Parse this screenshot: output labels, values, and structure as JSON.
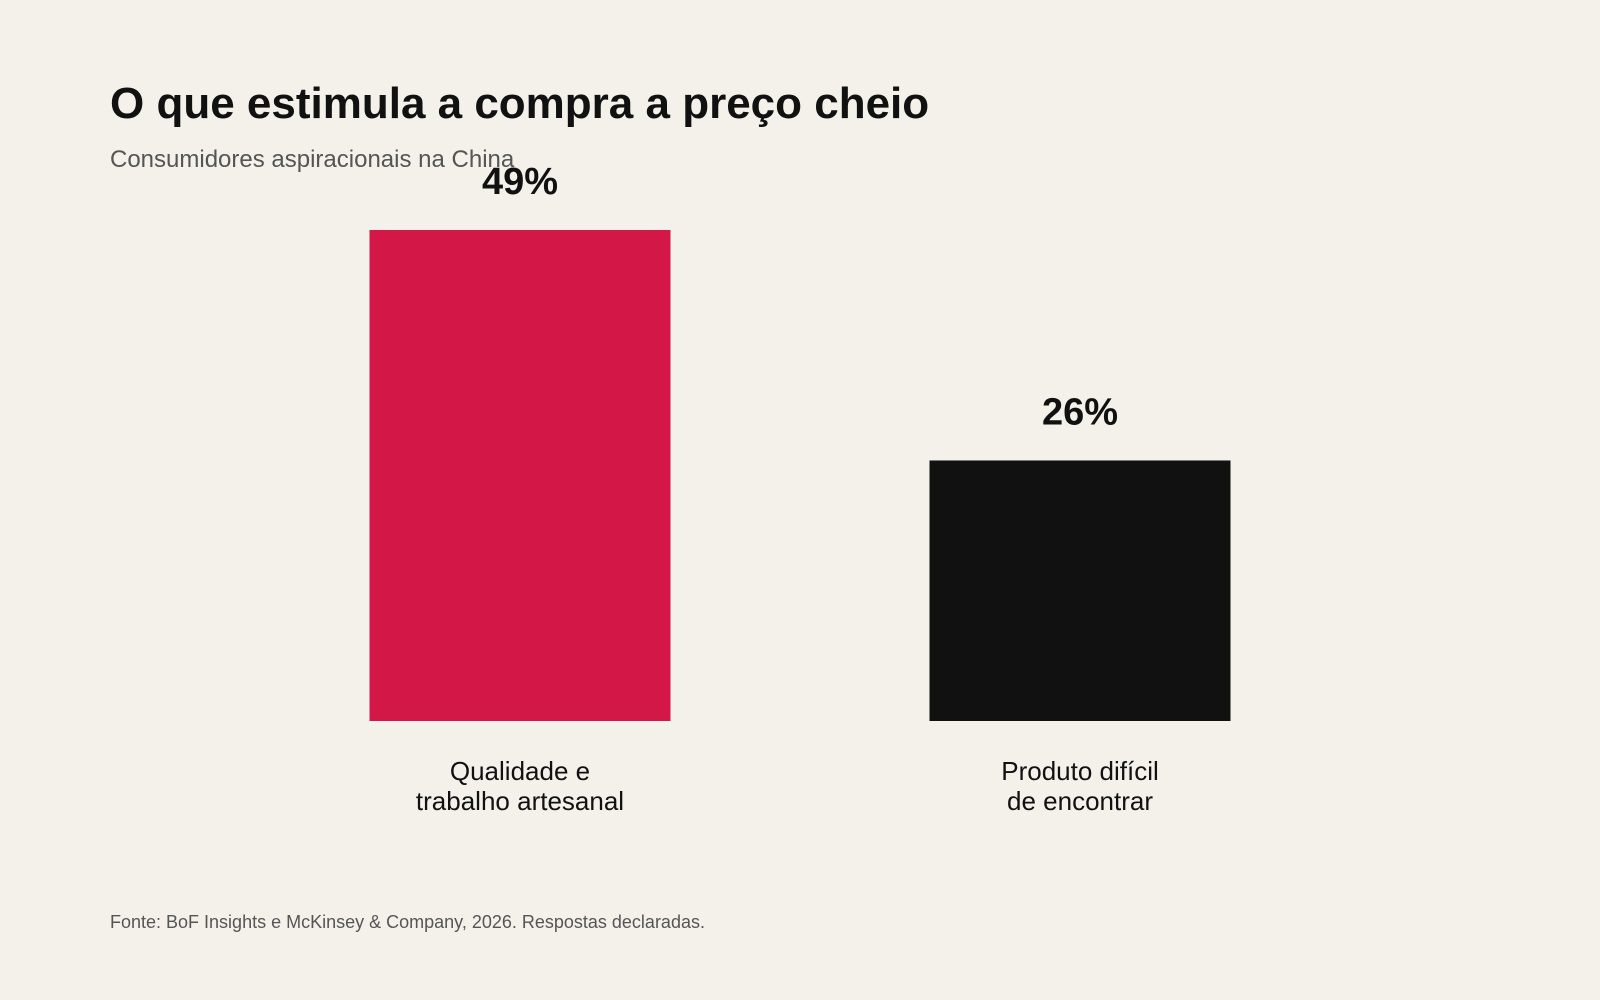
{
  "chart_data": {
    "type": "bar",
    "title": "O que estimula a compra a preço cheio",
    "subtitle": "Consumidores aspiracionais na China",
    "categories": [
      [
        "Qualidade e",
        "trabalho artesanal"
      ],
      [
        "Produto difícil",
        "de encontrar"
      ]
    ],
    "values": [
      49,
      26
    ],
    "value_labels": [
      "49%",
      "26%"
    ],
    "bar_colors": [
      "#d31848",
      "#111111"
    ],
    "ylim": [
      0,
      49
    ],
    "grid": false,
    "legend": false,
    "source": "Fonte: BoF Insights e McKinsey & Company, 2026. Respostas declaradas."
  }
}
